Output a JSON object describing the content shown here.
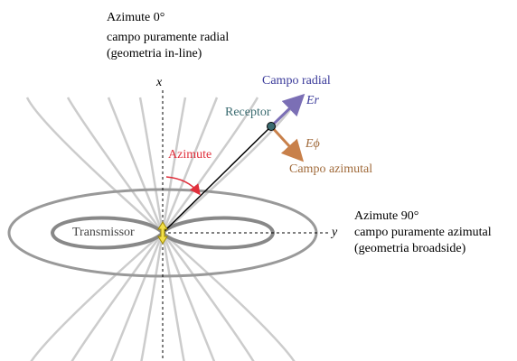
{
  "header": {
    "line1": "Azimute 0°",
    "line2": "campo puramente radial",
    "line3": "(geometria in-line)"
  },
  "axes": {
    "x": "x",
    "y": "y"
  },
  "labels": {
    "radial_field": "Campo radial",
    "receiver": "Receptor",
    "er": "Er",
    "azimuth": "Azimute",
    "ephi": "Eϕ",
    "azimuthal_field": "Campo azimutal",
    "transmitter": "Transmissor"
  },
  "side": {
    "line1": "Azimute 90°",
    "line2": "campo puramente azimutal",
    "line3": "(geometria broadside)"
  }
}
